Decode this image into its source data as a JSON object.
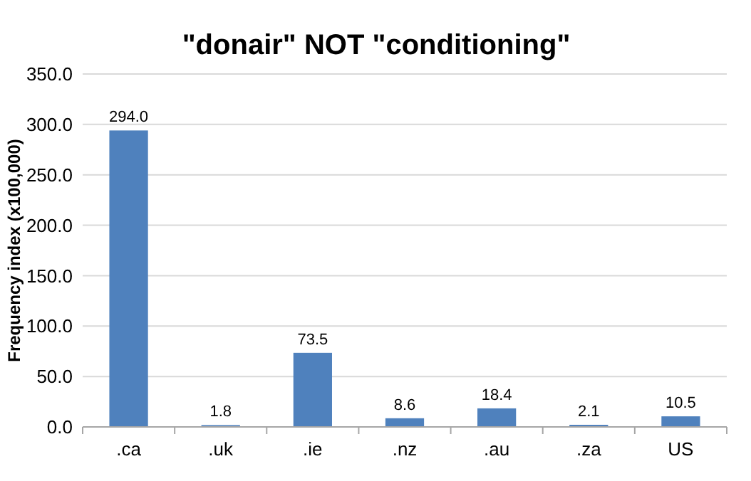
{
  "chart_data": {
    "type": "bar",
    "title": "\"donair\" NOT \"conditioning\"",
    "ylabel": "Frequency index (x100,000)",
    "categories": [
      ".ca",
      ".uk",
      ".ie",
      ".nz",
      ".au",
      ".za",
      "US"
    ],
    "values": [
      294.0,
      1.8,
      73.5,
      8.6,
      18.4,
      2.1,
      10.5
    ],
    "value_labels": [
      "294.0",
      "1.8",
      "73.5",
      "8.6",
      "18.4",
      "2.1",
      "10.5"
    ],
    "color": "#4f81bd",
    "ylim": [
      0,
      350
    ],
    "yticks": [
      {
        "value": 0,
        "label": "0.0"
      },
      {
        "value": 50,
        "label": "50.0"
      },
      {
        "value": 100,
        "label": "100.0"
      },
      {
        "value": 150,
        "label": "150.0"
      },
      {
        "value": 200,
        "label": "200.0"
      },
      {
        "value": 250,
        "label": "250.0"
      },
      {
        "value": 300,
        "label": "300.0"
      },
      {
        "value": 350,
        "label": "350.0"
      }
    ],
    "grid": true
  }
}
